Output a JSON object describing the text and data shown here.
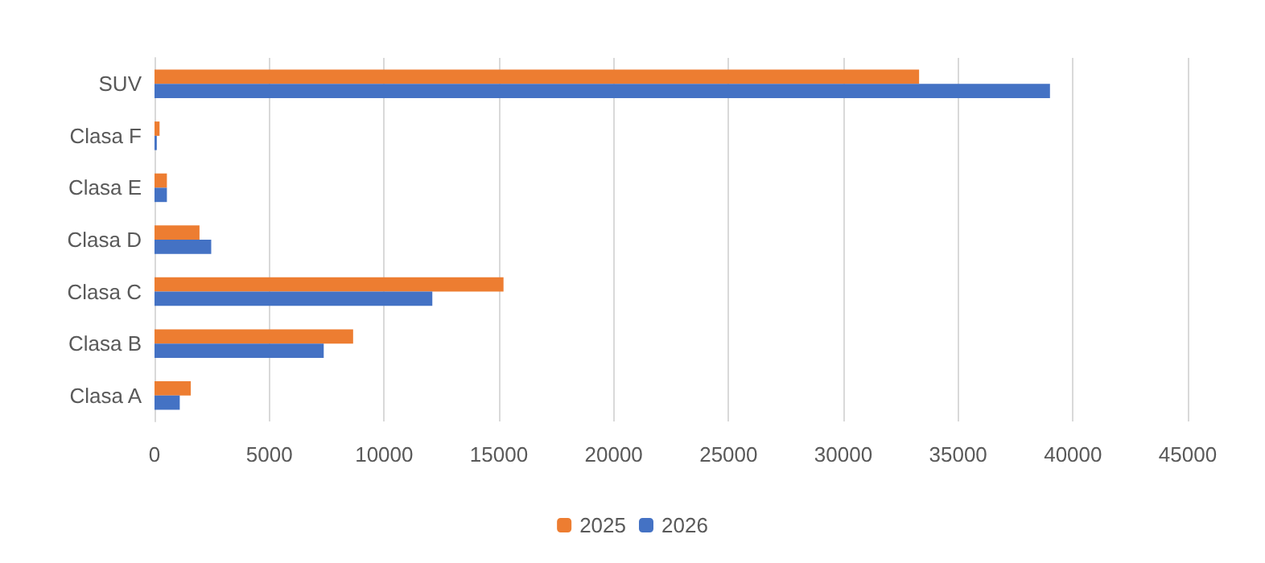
{
  "chart_data": {
    "type": "bar",
    "orientation": "horizontal",
    "categories": [
      "SUV",
      "Clasa F",
      "Clasa E",
      "Clasa D",
      "Clasa C",
      "Clasa B",
      "Clasa A"
    ],
    "series": [
      {
        "name": "2025",
        "color": "#ed7d31",
        "values": [
          33300,
          220,
          540,
          1960,
          15200,
          8650,
          1580
        ]
      },
      {
        "name": "2026",
        "color": "#4472c4",
        "values": [
          39000,
          100,
          540,
          2470,
          12100,
          7370,
          1100
        ]
      }
    ],
    "xlim": [
      0,
      45000
    ],
    "xticks": [
      0,
      5000,
      10000,
      15000,
      20000,
      25000,
      30000,
      35000,
      40000,
      45000
    ],
    "grid": "x",
    "legend": "bottom"
  }
}
